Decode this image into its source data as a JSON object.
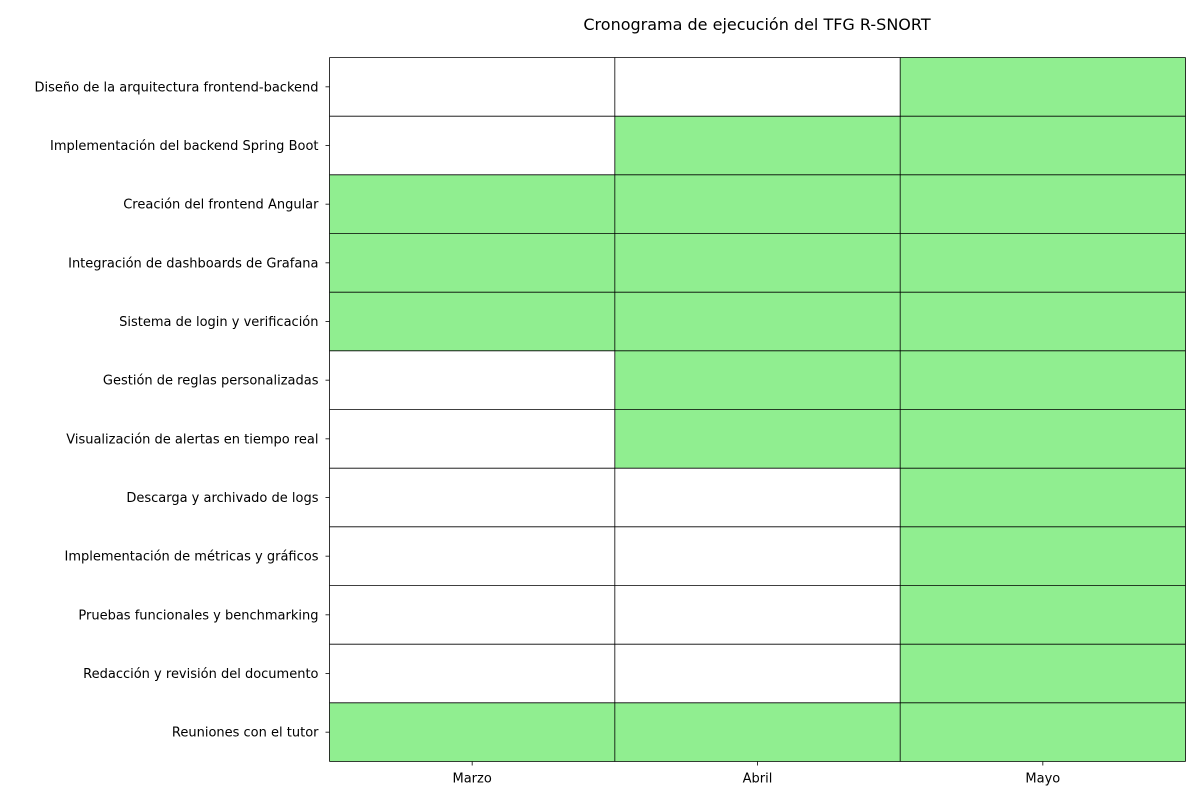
{
  "chart_data": {
    "type": "heatmap",
    "title": "Cronograma de ejecución del TFG R-SNORT",
    "xlabel": "",
    "ylabel": "",
    "columns": [
      "Marzo",
      "Abril",
      "Mayo"
    ],
    "rows": [
      "Diseño de la arquitectura frontend-backend",
      "Implementación del backend Spring Boot",
      "Creación del frontend Angular",
      "Integración de dashboards de Grafana",
      "Sistema de login y verificación",
      "Gestión de reglas personalizadas",
      "Visualización de alertas en tiempo real",
      "Descarga y archivado de logs",
      "Implementación de métricas y gráficos",
      "Pruebas funcionales y benchmarking",
      "Redacción y revisión del documento",
      "Reuniones con el tutor"
    ],
    "values": [
      [
        0,
        0,
        1
      ],
      [
        0,
        1,
        1
      ],
      [
        1,
        1,
        1
      ],
      [
        1,
        1,
        1
      ],
      [
        1,
        1,
        1
      ],
      [
        0,
        1,
        1
      ],
      [
        0,
        1,
        1
      ],
      [
        0,
        0,
        1
      ],
      [
        0,
        0,
        1
      ],
      [
        0,
        0,
        1
      ],
      [
        0,
        0,
        1
      ],
      [
        1,
        1,
        1
      ]
    ],
    "colors": {
      "active": "#90ee90",
      "inactive": "#ffffff",
      "grid": "#000000"
    },
    "grid": true,
    "legend": "none"
  }
}
